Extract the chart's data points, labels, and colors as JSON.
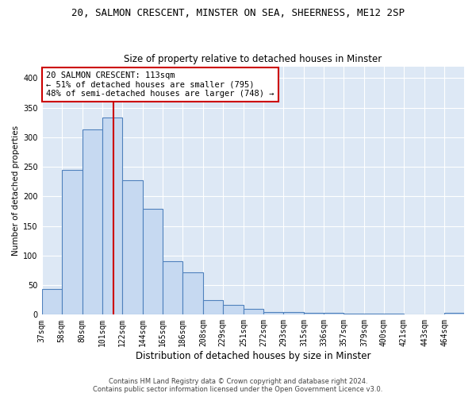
{
  "title": "20, SALMON CRESCENT, MINSTER ON SEA, SHEERNESS, ME12 2SP",
  "subtitle": "Size of property relative to detached houses in Minster",
  "xlabel": "Distribution of detached houses by size in Minster",
  "ylabel": "Number of detached properties",
  "bin_edges": [
    37,
    58,
    80,
    101,
    122,
    144,
    165,
    186,
    208,
    229,
    251,
    272,
    293,
    315,
    336,
    357,
    379,
    400,
    421,
    443,
    464,
    485
  ],
  "values": [
    43,
    245,
    313,
    333,
    228,
    179,
    90,
    72,
    25,
    16,
    10,
    4,
    4,
    3,
    3,
    2,
    2,
    2,
    0,
    0,
    3
  ],
  "bar_color": "#c6d9f1",
  "bar_edge_color": "#4f81bd",
  "property_line_x": 113,
  "property_line_color": "#cc0000",
  "annotation_line1": "20 SALMON CRESCENT: 113sqm",
  "annotation_line2": "← 51% of detached houses are smaller (795)",
  "annotation_line3": "48% of semi-detached houses are larger (748) →",
  "annotation_box_color": "#cc0000",
  "ylim": [
    0,
    420
  ],
  "yticks": [
    0,
    50,
    100,
    150,
    200,
    250,
    300,
    350,
    400
  ],
  "footer_line1": "Contains HM Land Registry data © Crown copyright and database right 2024.",
  "footer_line2": "Contains public sector information licensed under the Open Government Licence v3.0.",
  "bg_color": "#dde8f5",
  "plot_bg_color": "#ffffff",
  "title_fontsize": 9,
  "subtitle_fontsize": 8.5,
  "xlabel_fontsize": 8.5,
  "ylabel_fontsize": 7.5,
  "tick_fontsize": 7,
  "annotation_fontsize": 7.5,
  "footer_fontsize": 6
}
